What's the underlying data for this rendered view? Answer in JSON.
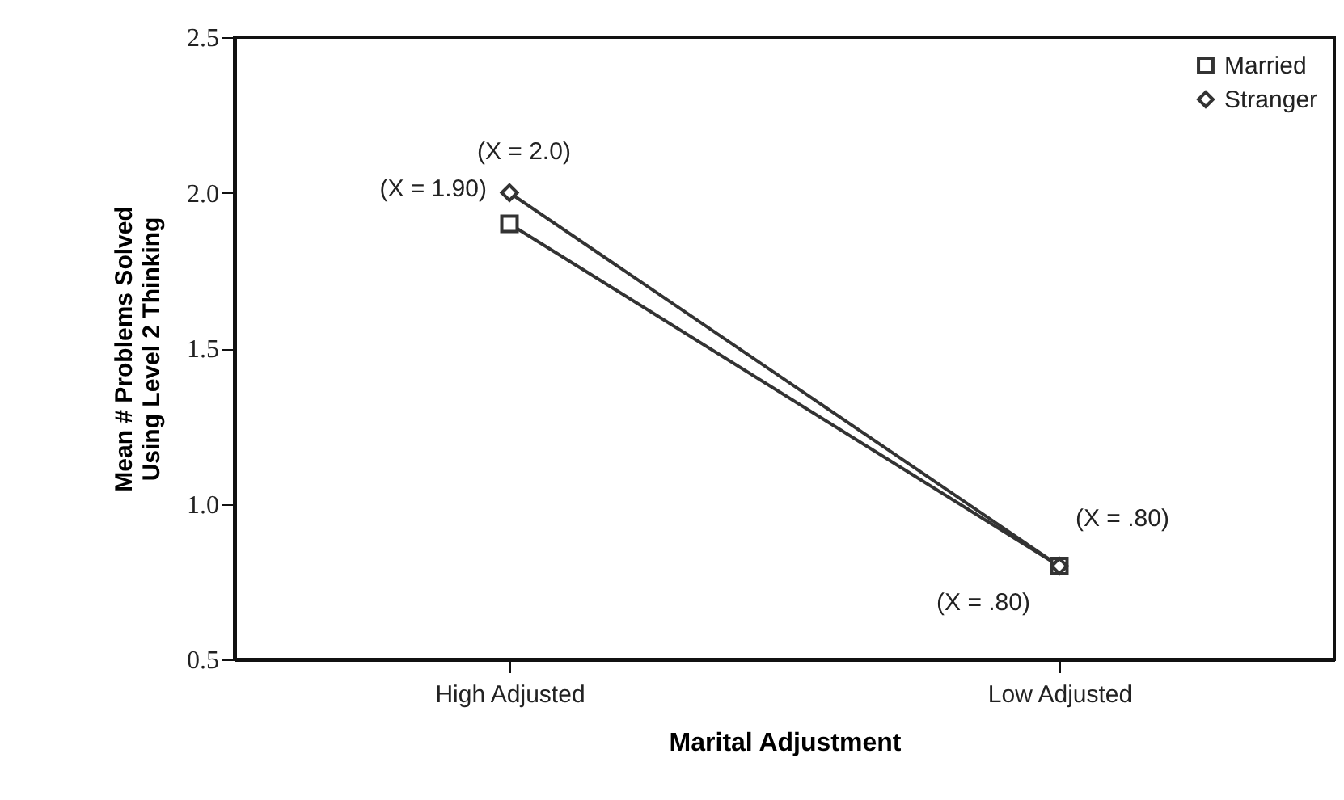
{
  "chart_data": {
    "type": "line",
    "xlabel": "Marital Adjustment",
    "ylabel": "Mean # Problems Solved\nUsing Level 2 Thinking",
    "categories": [
      "High Adjusted",
      "Low Adjusted"
    ],
    "series": [
      {
        "name": "Married",
        "color": "#333333",
        "values": [
          1.9,
          0.8
        ],
        "marker": "square"
      },
      {
        "name": "Stranger",
        "color": "#333333",
        "values": [
          2.0,
          0.8
        ],
        "marker": "diamond"
      }
    ],
    "ylim": [
      0.5,
      2.5
    ],
    "yticks": [
      0.5,
      {
        "value": 1,
        "label": "1.0"
      },
      1.5,
      {
        "value": 2,
        "label": "2.0"
      },
      2.5
    ],
    "grid": false,
    "legend": "top right",
    "line_style": "solid",
    "annotations": [
      {
        "text": "(X = 1.90)",
        "x": "High Adjusted",
        "y": 1.9
      },
      {
        "text": "(X = 2.0)",
        "x": "High Adjusted",
        "y": 2.0
      },
      {
        "text": "(X = .80)",
        "x": "Low Adjusted",
        "y": 0.8
      },
      {
        "text": "(X = .80)",
        "x": "Low Adjusted",
        "y": 0.8
      }
    ]
  }
}
